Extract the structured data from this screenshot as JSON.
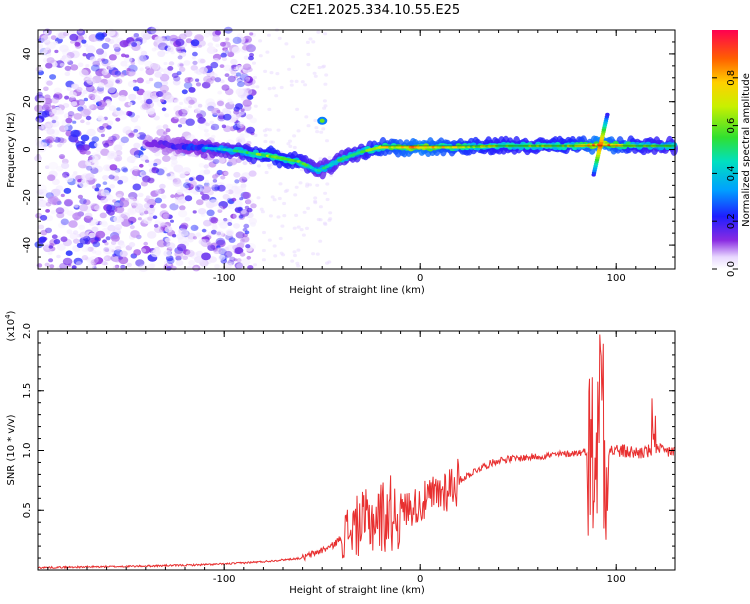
{
  "title": "C2E1.2025.334.10.55.E25",
  "chart_data": [
    {
      "type": "heatmap",
      "xlabel": "Height of straight line (km)",
      "ylabel": "Frequency (Hz)",
      "xlim": [
        -195,
        130
      ],
      "ylim": [
        -50,
        50
      ],
      "xticks": [
        -100,
        0,
        100
      ],
      "yticks": [
        -40,
        -20,
        0,
        20,
        40
      ],
      "colorbar": {
        "label": "Normalized spectral amplitude",
        "range": [
          0,
          1
        ],
        "ticks": [
          0.0,
          0.2,
          0.4,
          0.6,
          0.8
        ]
      },
      "ridge": {
        "description_points": [
          {
            "x": -130,
            "y": 2,
            "amp": 0.25
          },
          {
            "x": -115,
            "y": 1,
            "amp": 0.35
          },
          {
            "x": -100,
            "y": 0,
            "amp": 0.45
          },
          {
            "x": -90,
            "y": -1,
            "amp": 0.55
          },
          {
            "x": -75,
            "y": -3,
            "amp": 0.65
          },
          {
            "x": -62,
            "y": -5,
            "amp": 0.6
          },
          {
            "x": -52,
            "y": -9,
            "amp": 0.45
          },
          {
            "x": -40,
            "y": -4,
            "amp": 0.5
          },
          {
            "x": -30,
            "y": -1,
            "amp": 0.55
          },
          {
            "x": -20,
            "y": 1,
            "amp": 0.7
          },
          {
            "x": 0,
            "y": 1,
            "amp": 0.85
          },
          {
            "x": 20,
            "y": 1,
            "amp": 0.7
          },
          {
            "x": 40,
            "y": 1.5,
            "amp": 0.6
          },
          {
            "x": 60,
            "y": 1.5,
            "amp": 0.6
          },
          {
            "x": 80,
            "y": 1.5,
            "amp": 0.65
          },
          {
            "x": 92,
            "y": 2,
            "amp": 0.9
          },
          {
            "x": 110,
            "y": 1.5,
            "amp": 0.6
          },
          {
            "x": 128,
            "y": 1.5,
            "amp": 0.55
          }
        ]
      }
    },
    {
      "type": "line",
      "xlabel": "Height of straight line (km)",
      "ylabel": "SNR (10 * v/v)",
      "yscale_label": "(x10",
      "yscale_exp": "4",
      "yscale_close": ")",
      "xlim": [
        -195,
        130
      ],
      "ylim": [
        0,
        2.0
      ],
      "xticks": [
        -100,
        0,
        100
      ],
      "yticks": [
        0.5,
        1.0,
        1.5,
        2.0
      ],
      "series": [
        {
          "name": "SNR",
          "color": "#e83030",
          "envelope": {
            "x": [
              -195,
              -150,
              -120,
              -100,
              -80,
              -60,
              -45,
              -35,
              -20,
              -10,
              0,
              10,
              20,
              30,
              40,
              60,
              80,
              88,
              92,
              95,
              100,
              110,
              120,
              125,
              130
            ],
            "y": [
              0.02,
              0.03,
              0.04,
              0.05,
              0.07,
              0.1,
              0.2,
              0.35,
              0.45,
              0.5,
              0.55,
              0.65,
              0.75,
              0.85,
              0.92,
              0.95,
              0.98,
              1.0,
              1.0,
              1.0,
              1.0,
              0.98,
              1.0,
              0.99,
              1.0
            ]
          }
        }
      ]
    }
  ]
}
